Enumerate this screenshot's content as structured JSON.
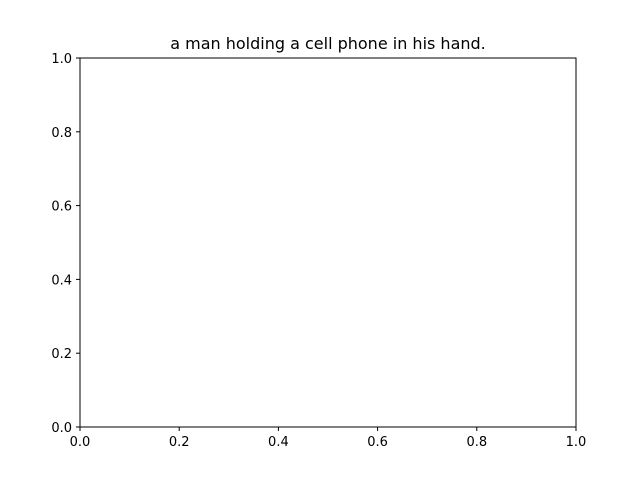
{
  "chart_data": {
    "type": "scatter",
    "title": "a man holding a cell phone in his hand.",
    "xlabel": "",
    "ylabel": "",
    "xlim": [
      0.0,
      1.0
    ],
    "ylim": [
      0.0,
      1.0
    ],
    "x_ticks": [
      "0.0",
      "0.2",
      "0.4",
      "0.6",
      "0.8",
      "1.0"
    ],
    "y_ticks": [
      "0.0",
      "0.2",
      "0.4",
      "0.6",
      "0.8",
      "1.0"
    ],
    "grid": false,
    "series": []
  },
  "colors": {
    "axes": "#000000",
    "background": "#ffffff"
  }
}
